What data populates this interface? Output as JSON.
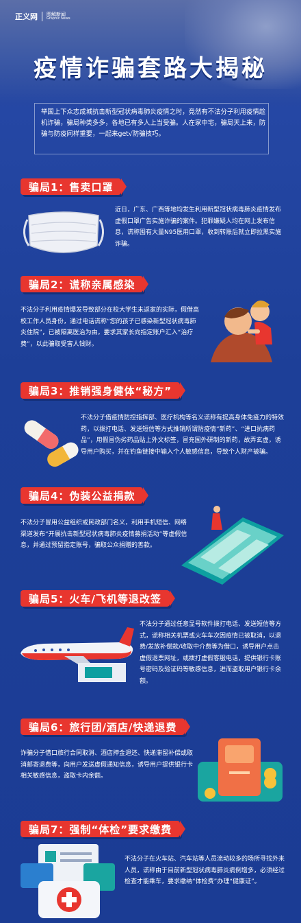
{
  "logo": {
    "main": "正义网",
    "cn": "图解新闻",
    "en": "Graphic News"
  },
  "title": "疫情诈骗套路大揭秘",
  "intro": "举国上下众志成城抗击新型冠状病毒肺炎疫情之时，竟然有不法分子利用疫情趁机诈骗，骗局种类多多，各地已有多人上当受骗。人在家中宅，骗局天上来，防骗与防疫同样重要，一起来get√防骗技巧。",
  "scams": [
    {
      "title": "骗局1：售卖口罩",
      "text": "近日，广东、广西等地均发生利用新型冠状病毒肺炎疫情发布虚假口罩广告实施诈骗的案件。犯罪嫌疑人均在网上发布信息，谎称囤有大量N95医用口罩，收到转账后就立即拉黑实施诈骗。",
      "icon": "face-mask-icon"
    },
    {
      "title": "骗局2：谎称亲属感染",
      "text": "不法分子利用疫情爆发导致部分在校大学生未返家的实际，假借高校工作人员身份，通过电话谎称“您的孩子已感染新型冠状病毒肺炎住院”，已被隔离医治为由，要求其家长向指定账户汇入“治疗费”，以此骗取受害人钱财。",
      "icon": "parent-child-icon"
    },
    {
      "title": "骗局3：推销强身健体“秘方”",
      "text": "不法分子借疫情防控指挥部、医疗机构等名义谎称有提高身体免疫力的特效药，以拨打电话、发送短信等方式推销所谓防疫情“新药”、“进口抗病药品”，用假冒伪劣药品贴上外文标签，冒充国外研制的新药，故弄玄虚，诱导用户购买，并在钓鱼链接中输入个人敏感信息，导致个人财产被骗。",
      "icon": "pill-capsule-icon"
    },
    {
      "title": "骗局4：伪装公益捐款",
      "text": "不法分子冒用公益组织或民政部门名义，利用手机短信、网络渠道发布“开展抗击新型冠状病毒肺炎疫情募捐活动”等虚假信息，并通过预留指定账号，骗取公众捐赠的善款。",
      "icon": "smartphone-icon"
    },
    {
      "title": "骗局5：火车/飞机等退改签",
      "text": "不法分子通过任意显号软件拨打电话、发送短信等方式，谎称相关机票或火车车次因疫情已被取消，以退费/发放补偿款/收取中介费等为借口，诱导用户点击虚假退票网址，或拨打虚假客服电话，提供银行卡账号密码及验证码等敏感信息，进而盗取用户银行卡余额。",
      "icon": "airplane-icon"
    },
    {
      "title": "骗局6：旅行团/酒店/快递退费",
      "text": "诈骗分子借口旅行合同取消、酒店押金退还、快递滞留补偿或取消邮寄退费等，向用户发送虚假通知信息，诱导用户提供银行卡相关敏感信息，盗取卡内余额。",
      "icon": "bank-card-icon"
    },
    {
      "title": "骗局7：强制“体检”要求缴费",
      "text": "不法分子在火车站、汽车站等人员流动较多的场所寻找外来人员，谎称由于目前新型冠状病毒肺炎病例增多，必须经过检查才能乘车，要求缴纳“体检费”办理“健康证”。",
      "icon": "medical-kit-icon"
    }
  ]
}
